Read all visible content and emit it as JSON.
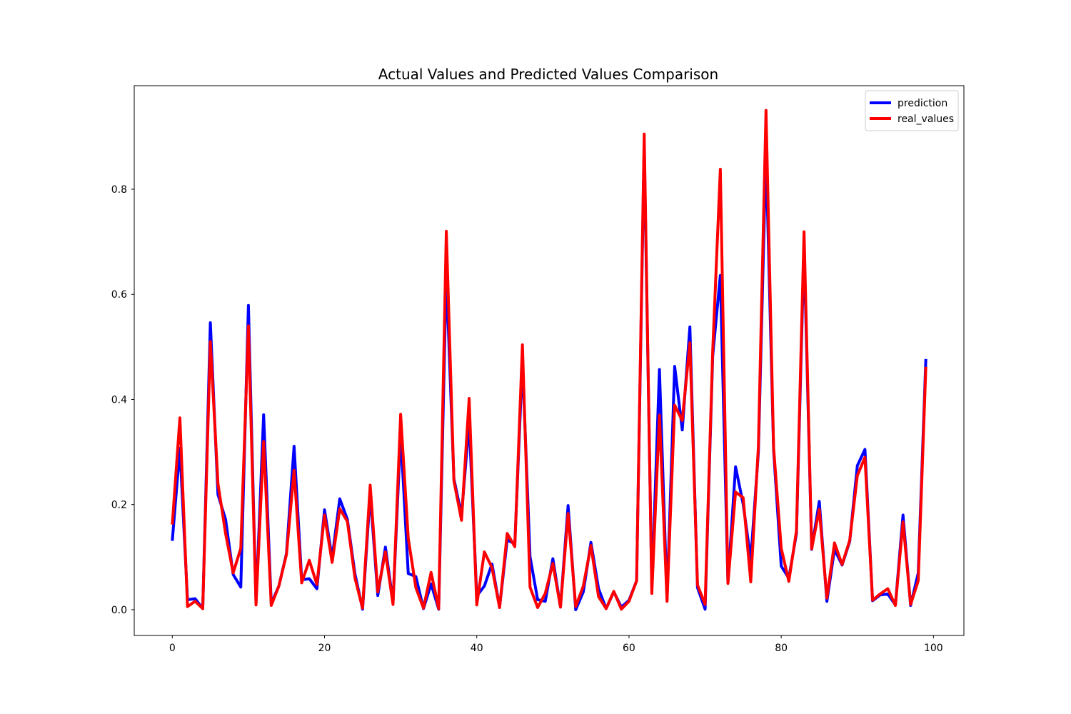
{
  "chart_data": {
    "type": "line",
    "title": "Actual Values and Predicted Values Comparison",
    "xlabel": "",
    "ylabel": "",
    "xlim": [
      -5,
      104
    ],
    "ylim": [
      -0.049,
      0.997
    ],
    "x_ticks": [
      0,
      20,
      40,
      60,
      80,
      100
    ],
    "y_ticks": [
      0.0,
      0.2,
      0.4,
      0.6,
      0.8
    ],
    "x_tick_labels": [
      "0",
      "20",
      "40",
      "60",
      "80",
      "100"
    ],
    "y_tick_labels": [
      "0.0",
      "0.2",
      "0.4",
      "0.6",
      "0.8"
    ],
    "grid": false,
    "legend_position": "upper right",
    "series": [
      {
        "name": "prediction",
        "color": "#0000ff",
        "values": [
          0.131,
          0.307,
          0.019,
          0.021,
          0.002,
          0.546,
          0.219,
          0.172,
          0.067,
          0.043,
          0.579,
          0.012,
          0.371,
          0.012,
          0.045,
          0.107,
          0.311,
          0.057,
          0.059,
          0.04,
          0.19,
          0.098,
          0.211,
          0.172,
          0.068,
          0.001,
          0.221,
          0.027,
          0.119,
          0.014,
          0.336,
          0.069,
          0.063,
          0.002,
          0.049,
          0.001,
          0.642,
          0.249,
          0.18,
          0.357,
          0.026,
          0.045,
          0.087,
          0.005,
          0.133,
          0.125,
          0.473,
          0.101,
          0.019,
          0.016,
          0.097,
          0.005,
          0.198,
          0.0,
          0.034,
          0.128,
          0.04,
          0.002,
          0.034,
          0.005,
          0.018,
          0.055,
          0.884,
          0.04,
          0.457,
          0.02,
          0.463,
          0.342,
          0.538,
          0.042,
          0.001,
          0.483,
          0.636,
          0.051,
          0.272,
          0.201,
          0.095,
          0.3,
          0.874,
          0.303,
          0.083,
          0.06,
          0.145,
          0.692,
          0.115,
          0.206,
          0.016,
          0.115,
          0.085,
          0.13,
          0.274,
          0.305,
          0.017,
          0.028,
          0.03,
          0.009,
          0.18,
          0.008,
          0.07,
          0.477
        ]
      },
      {
        "name": "real_values",
        "color": "#ff0000",
        "values": [
          0.162,
          0.365,
          0.006,
          0.016,
          0.002,
          0.51,
          0.24,
          0.145,
          0.07,
          0.117,
          0.54,
          0.009,
          0.32,
          0.008,
          0.045,
          0.105,
          0.265,
          0.051,
          0.094,
          0.048,
          0.18,
          0.09,
          0.192,
          0.168,
          0.06,
          0.003,
          0.237,
          0.034,
          0.11,
          0.01,
          0.372,
          0.136,
          0.042,
          0.003,
          0.071,
          0.002,
          0.72,
          0.245,
          0.17,
          0.402,
          0.009,
          0.11,
          0.08,
          0.004,
          0.145,
          0.12,
          0.504,
          0.043,
          0.004,
          0.031,
          0.088,
          0.005,
          0.183,
          0.006,
          0.045,
          0.122,
          0.025,
          0.002,
          0.035,
          0.001,
          0.016,
          0.055,
          0.905,
          0.031,
          0.37,
          0.016,
          0.389,
          0.36,
          0.508,
          0.047,
          0.01,
          0.493,
          0.838,
          0.05,
          0.224,
          0.213,
          0.053,
          0.311,
          0.95,
          0.308,
          0.117,
          0.054,
          0.15,
          0.719,
          0.116,
          0.191,
          0.022,
          0.127,
          0.086,
          0.132,
          0.255,
          0.29,
          0.018,
          0.03,
          0.04,
          0.008,
          0.167,
          0.01,
          0.055,
          0.462
        ]
      }
    ]
  }
}
